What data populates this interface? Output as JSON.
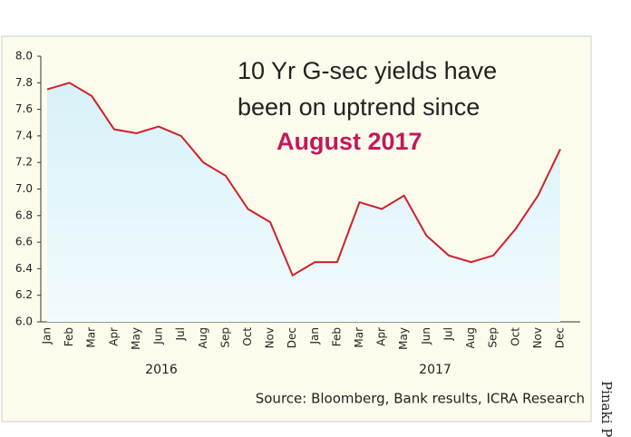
{
  "chart_data": {
    "type": "line",
    "title_lines": [
      "10 Yr G-sec yields have",
      "been on uptrend since"
    ],
    "highlight": "August 2017",
    "categories": [
      "Jan",
      "Feb",
      "Mar",
      "Apr",
      "May",
      "Jun",
      "Jul",
      "Aug",
      "Sep",
      "Oct",
      "Nov",
      "Dec",
      "Jan",
      "Feb",
      "Mar",
      "Apr",
      "May",
      "Jun",
      "Jul",
      "Aug",
      "Sep",
      "Oct",
      "Nov",
      "Dec"
    ],
    "year_labels": [
      "2016",
      "2017"
    ],
    "series": [
      {
        "name": "10 Yr G-sec yield",
        "color": "#d0202a",
        "values": [
          7.75,
          7.8,
          7.7,
          7.45,
          7.42,
          7.47,
          7.4,
          7.2,
          7.1,
          6.85,
          6.75,
          6.35,
          6.45,
          6.45,
          6.9,
          6.85,
          6.95,
          6.65,
          6.5,
          6.45,
          6.5,
          6.7,
          6.95,
          7.3
        ]
      }
    ],
    "ylim": [
      6.0,
      8.0
    ],
    "yticks": [
      {
        "value": 6.0,
        "label": "6.0"
      },
      6.2,
      6.4,
      6.6,
      6.8,
      {
        "value": 7.0,
        "label": "7.0"
      },
      7.2,
      7.4,
      7.6,
      7.8,
      {
        "value": 8.0,
        "label": "8.0"
      }
    ],
    "source": "Source: Bloomberg, Bank results, ICRA Research",
    "credit": "Pinaki Paul"
  }
}
